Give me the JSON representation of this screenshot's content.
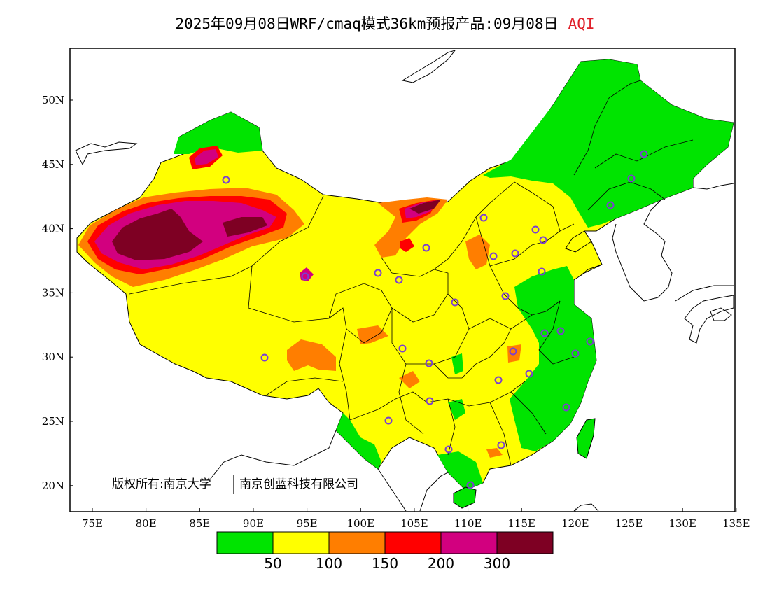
{
  "title": {
    "main": "2025年09月08日WRF/cmaq模式36km预报产品:09月08日",
    "variable": "AQI",
    "variable_color": "#e0202a"
  },
  "axes": {
    "lon_ticks": [
      "75E",
      "80E",
      "85E",
      "90E",
      "95E",
      "100E",
      "105E",
      "110E",
      "115E",
      "120E",
      "125E",
      "130E",
      "135E"
    ],
    "lat_ticks": [
      "50N",
      "45N",
      "40N",
      "35N",
      "30N",
      "25N",
      "20N"
    ],
    "lon_range": [
      73,
      135
    ],
    "lat_range": [
      18,
      54
    ]
  },
  "copyright": {
    "left": "版权所有:南京大学",
    "right": "南京创蓝科技有限公司"
  },
  "colorbar": {
    "colors": [
      "#00e400",
      "#ffff00",
      "#ff7e00",
      "#ff0000",
      "#d2007f",
      "#7e0023"
    ],
    "labels": [
      "50",
      "100",
      "150",
      "200",
      "300"
    ]
  },
  "legend_categories": [
    "0-50",
    "50-100",
    "100-150",
    "150-200",
    "200-300",
    ">300"
  ],
  "marker_color": "#7b3fd0"
}
